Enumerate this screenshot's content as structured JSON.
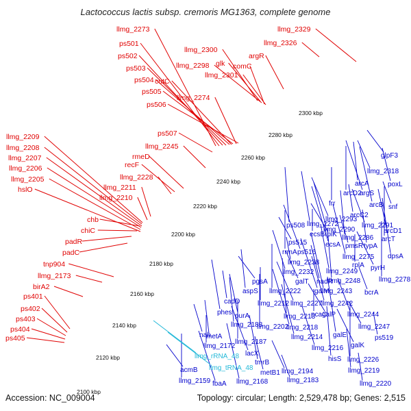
{
  "title": "Lactococcus lactis subsp. cremoris MG1363, complete genome",
  "accession": "Accession: NC_009004",
  "summary": "Topology: circular; Length: 2,529,478 bp; Genes: 2,515",
  "colors": {
    "left_labels": "#e00000",
    "right_labels": "#0000cc",
    "rna_labels": "#22b8d8",
    "backbone": "#808080",
    "gc_dots": "#2a8a2a"
  },
  "kbp_ticks": [
    "2100 kbp",
    "2120 kbp",
    "2140 kbp",
    "2160 kbp",
    "2180 kbp",
    "2200 kbp",
    "2220 kbp",
    "2240 kbp",
    "2260 kbp",
    "2280 kbp",
    "2300 kbp"
  ],
  "left_labels": [
    "llmg_2273",
    "ps501",
    "ps502",
    "ps503",
    "ps504",
    "cutC",
    "ps505",
    "llmg_2274",
    "ps506",
    "ps507",
    "llmg_2245",
    "rmeD",
    "recF",
    "llmg_2228",
    "llmg_2211",
    "llmg_2210",
    "llmg_2209",
    "llmg_2208",
    "llmg_2207",
    "llmg_2206",
    "llmg_2205",
    "hslO",
    "chb",
    "chiC",
    "padR",
    "padC",
    "tnp904",
    "llmg_2173",
    "birA2",
    "ps401",
    "ps402",
    "ps403",
    "ps404",
    "ps405",
    "llmg_2300",
    "glk",
    "llmg_2298",
    "comC",
    "llmg_2301",
    "argR",
    "llmg_2326",
    "llmg_2329"
  ],
  "right_labels": [
    "glpF3",
    "llmg_2318",
    "poxL",
    "arcA",
    "arcD2",
    "argS",
    "arcB",
    "snf",
    "arcC2",
    "frr",
    "llmg_2293",
    "llmg_2290",
    "llmg_2272",
    "ps508",
    "ecsB",
    "rplK",
    "llmg_2291",
    "arcD1",
    "llmg_2286",
    "arcT",
    "ecsA",
    "ps515",
    "pmsR",
    "typA",
    "rrmA",
    "ps516",
    "llmg_2275",
    "dpsA",
    "llmg_2238",
    "rplA",
    "pyrH",
    "llmg_2232",
    "llmg_2249",
    "llmg_2248",
    "llmg_2278",
    "pgsA",
    "galT",
    "nadR",
    "aspS",
    "llmg_2222",
    "galM",
    "llmg_2243",
    "bcrA",
    "cadD",
    "llmg_2212",
    "llmg_2227",
    "llmg_2242",
    "phes",
    "llmg_2213",
    "pcaC",
    "galP",
    "llmg_2244",
    "purA",
    "llmg_2188",
    "llmg_2202",
    "llmg_2218",
    "llmg_2247",
    "nah",
    "metA",
    "llmg_2187",
    "lacX",
    "llmg_2214",
    "galE",
    "ps519",
    "llmg_2172",
    "galK",
    "llmg_2216",
    "tmrB",
    "hisS",
    "llmg_2226",
    "acmB",
    "llmg_2194",
    "metB1",
    "llmg_2219",
    "llmg_2159",
    "fbaA",
    "llmg_2168",
    "llmg_2183",
    "llmg_2220"
  ],
  "rna_labels": [
    "llmg_rRNA_48",
    "llmg_tRNA_48"
  ]
}
